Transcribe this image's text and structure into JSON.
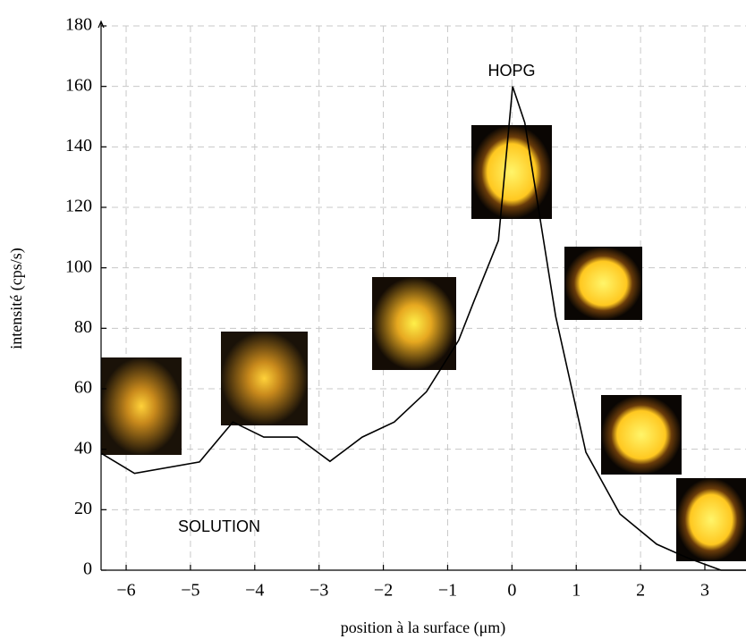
{
  "chart_data": {
    "type": "line",
    "xlabel": "position à la surface (μm)",
    "ylabel": "intensité (cps/s)",
    "annotations": [
      "SOLUTION",
      "HOPG"
    ],
    "x": [
      -6.39,
      -5.87,
      -4.86,
      -4.34,
      -3.86,
      -3.34,
      -2.83,
      -2.33,
      -1.83,
      -1.33,
      -0.83,
      -0.59,
      -0.21,
      0.01,
      0.2,
      0.68,
      1.15,
      1.68,
      2.25,
      2.74,
      3.25,
      3.64
    ],
    "values": [
      38.7,
      32,
      35.8,
      49,
      44,
      44,
      36,
      44,
      49,
      59,
      76,
      89,
      109,
      160,
      148,
      84,
      39,
      18.6,
      8.6,
      4,
      0,
      0
    ],
    "color": "#000000",
    "xlim": [
      -6.39,
      3.64
    ],
    "ylim": [
      0,
      180
    ],
    "xticks": [
      {
        "value": -6,
        "label": "−6"
      },
      {
        "value": -5,
        "label": "−5"
      },
      {
        "value": -4,
        "label": "−4"
      },
      {
        "value": -3,
        "label": "−3"
      },
      {
        "value": -2,
        "label": "−2"
      },
      {
        "value": -1,
        "label": "−1"
      },
      0,
      1,
      2,
      3
    ],
    "yticks": [
      0,
      20,
      40,
      60,
      80,
      100,
      120,
      140,
      160,
      180
    ],
    "grid": true
  }
}
